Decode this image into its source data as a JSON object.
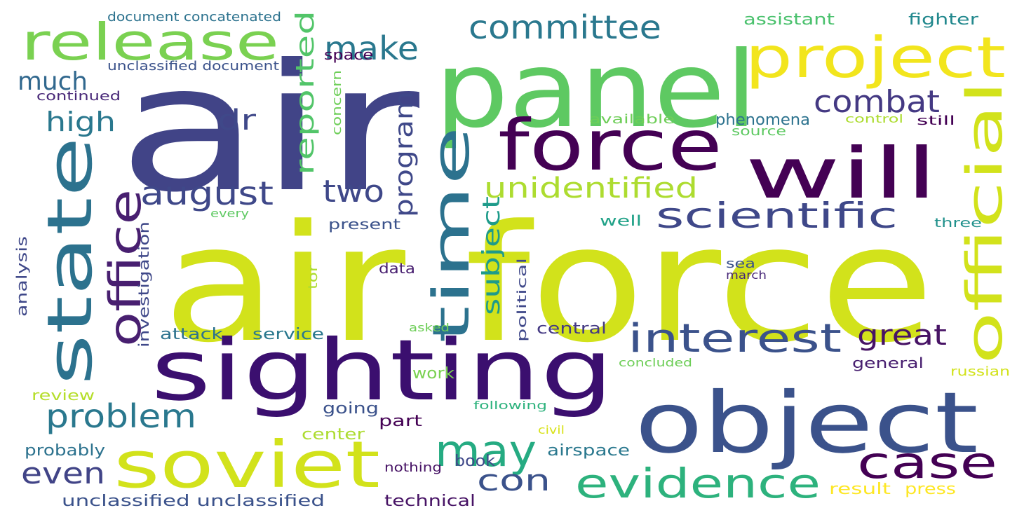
{
  "words": [
    {
      "text": "air",
      "color": "#414487"
    },
    {
      "text": "air force",
      "color": "#d2e21b"
    },
    {
      "text": "panel",
      "color": "#5ec962"
    },
    {
      "text": "sighting",
      "color": "#3b0f6f"
    },
    {
      "text": "object",
      "color": "#3b528b"
    },
    {
      "text": "force",
      "color": "#440154"
    },
    {
      "text": "will",
      "color": "#440154"
    },
    {
      "text": "soviet",
      "color": "#d2e21b"
    },
    {
      "text": "state",
      "color": "#2c728e"
    },
    {
      "text": "project",
      "color": "#f2e51d"
    },
    {
      "text": "release",
      "color": "#7ad151"
    },
    {
      "text": "time",
      "color": "#2c728e"
    },
    {
      "text": "official",
      "color": "#d2e21b"
    },
    {
      "text": "office",
      "color": "#481f70"
    },
    {
      "text": "case",
      "color": "#440154"
    },
    {
      "text": "evidence",
      "color": "#2db27d"
    },
    {
      "text": "may",
      "color": "#25ab82"
    },
    {
      "text": "interest",
      "color": "#3b528b"
    },
    {
      "text": "scientific",
      "color": "#3f4889"
    },
    {
      "text": "committee",
      "color": "#2a788e"
    },
    {
      "text": "august",
      "color": "#3f4889"
    },
    {
      "text": "problem",
      "color": "#2a788e"
    },
    {
      "text": "combat",
      "color": "#443983"
    },
    {
      "text": "unidentified",
      "color": "#addc30"
    },
    {
      "text": "make",
      "color": "#2a788e"
    },
    {
      "text": "two",
      "color": "#3f4889"
    },
    {
      "text": "con",
      "color": "#3b528b"
    },
    {
      "text": "even",
      "color": "#414487"
    },
    {
      "text": "great",
      "color": "#471365"
    },
    {
      "text": "dr",
      "color": "#3f4889"
    },
    {
      "text": "high",
      "color": "#2a788e"
    },
    {
      "text": "much",
      "color": "#31688e"
    },
    {
      "text": "reported",
      "color": "#52c569"
    },
    {
      "text": "program",
      "color": "#3f4889"
    },
    {
      "text": "subject",
      "color": "#1e9b8a"
    },
    {
      "text": "phenomena",
      "color": "#2c728e"
    },
    {
      "text": "attack",
      "color": "#2c728e"
    },
    {
      "text": "service",
      "color": "#2a788e"
    },
    {
      "text": "central",
      "color": "#443983"
    },
    {
      "text": "work",
      "color": "#7ad151"
    },
    {
      "text": "going",
      "color": "#3b528b"
    },
    {
      "text": "part",
      "color": "#440154"
    },
    {
      "text": "center",
      "color": "#addc30"
    },
    {
      "text": "book",
      "color": "#3f4889"
    },
    {
      "text": "airspace",
      "color": "#2a788e"
    },
    {
      "text": "technical",
      "color": "#471365"
    },
    {
      "text": "unclassified unclassified",
      "color": "#3b528b"
    },
    {
      "text": "review",
      "color": "#b5de2b"
    },
    {
      "text": "probably",
      "color": "#2c728e"
    },
    {
      "text": "general",
      "color": "#481f70"
    },
    {
      "text": "result",
      "color": "#fde725"
    },
    {
      "text": "press",
      "color": "#fde725"
    },
    {
      "text": "assistant",
      "color": "#4ac16d"
    },
    {
      "text": "fighter",
      "color": "#23898e"
    },
    {
      "text": "space",
      "color": "#440154"
    },
    {
      "text": "document concatenated",
      "color": "#2c728e"
    },
    {
      "text": "unclassified document",
      "color": "#3b528b"
    },
    {
      "text": "continued",
      "color": "#482878"
    },
    {
      "text": "available",
      "color": "#6ece58"
    },
    {
      "text": "source",
      "color": "#5ec962"
    },
    {
      "text": "control",
      "color": "#addc30"
    },
    {
      "text": "still",
      "color": "#440154"
    },
    {
      "text": "well",
      "color": "#1fa187"
    },
    {
      "text": "present",
      "color": "#3b528b"
    },
    {
      "text": "three",
      "color": "#21918c"
    },
    {
      "text": "data",
      "color": "#481f70"
    },
    {
      "text": "sea",
      "color": "#3b528b"
    },
    {
      "text": "march",
      "color": "#482878"
    },
    {
      "text": "every",
      "color": "#5ec962"
    },
    {
      "text": "asked",
      "color": "#6ece58"
    },
    {
      "text": "concluded",
      "color": "#6ece58"
    },
    {
      "text": "following",
      "color": "#2db27d"
    },
    {
      "text": "civil",
      "color": "#d8e219"
    },
    {
      "text": "nothing",
      "color": "#471365"
    },
    {
      "text": "russian",
      "color": "#d2e21b"
    },
    {
      "text": "analysis",
      "color": "#3f4889"
    },
    {
      "text": "investigation",
      "color": "#3f4889"
    },
    {
      "text": "concern",
      "color": "#6ece58"
    },
    {
      "text": "tor",
      "color": "#addc30"
    },
    {
      "text": "political",
      "color": "#3f4889"
    }
  ]
}
